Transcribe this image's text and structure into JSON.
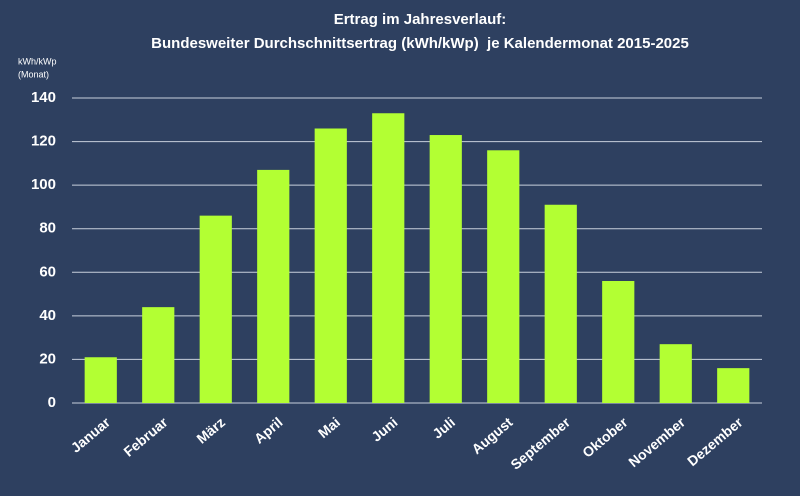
{
  "chart_data": {
    "type": "bar",
    "title": [
      "Ertrag im Jahresverlauf:",
      "Bundesweiter Durchschnittsertrag (kWh/kWp)  je Kalendermonat 2015-2025"
    ],
    "ylabel": [
      "kWh/kWp",
      "(Monat)"
    ],
    "categories": [
      "Januar",
      "Februar",
      "März",
      "April",
      "Mai",
      "Juni",
      "Juli",
      "August",
      "September",
      "Oktober",
      "November",
      "Dezember"
    ],
    "values": [
      21,
      44,
      86,
      107,
      126,
      133,
      123,
      116,
      91,
      56,
      27,
      16
    ],
    "color": "#b3ff33",
    "ylim": [
      0,
      140
    ],
    "yticks": [
      0,
      20,
      40,
      60,
      80,
      100,
      120,
      140
    ],
    "grid": true
  }
}
